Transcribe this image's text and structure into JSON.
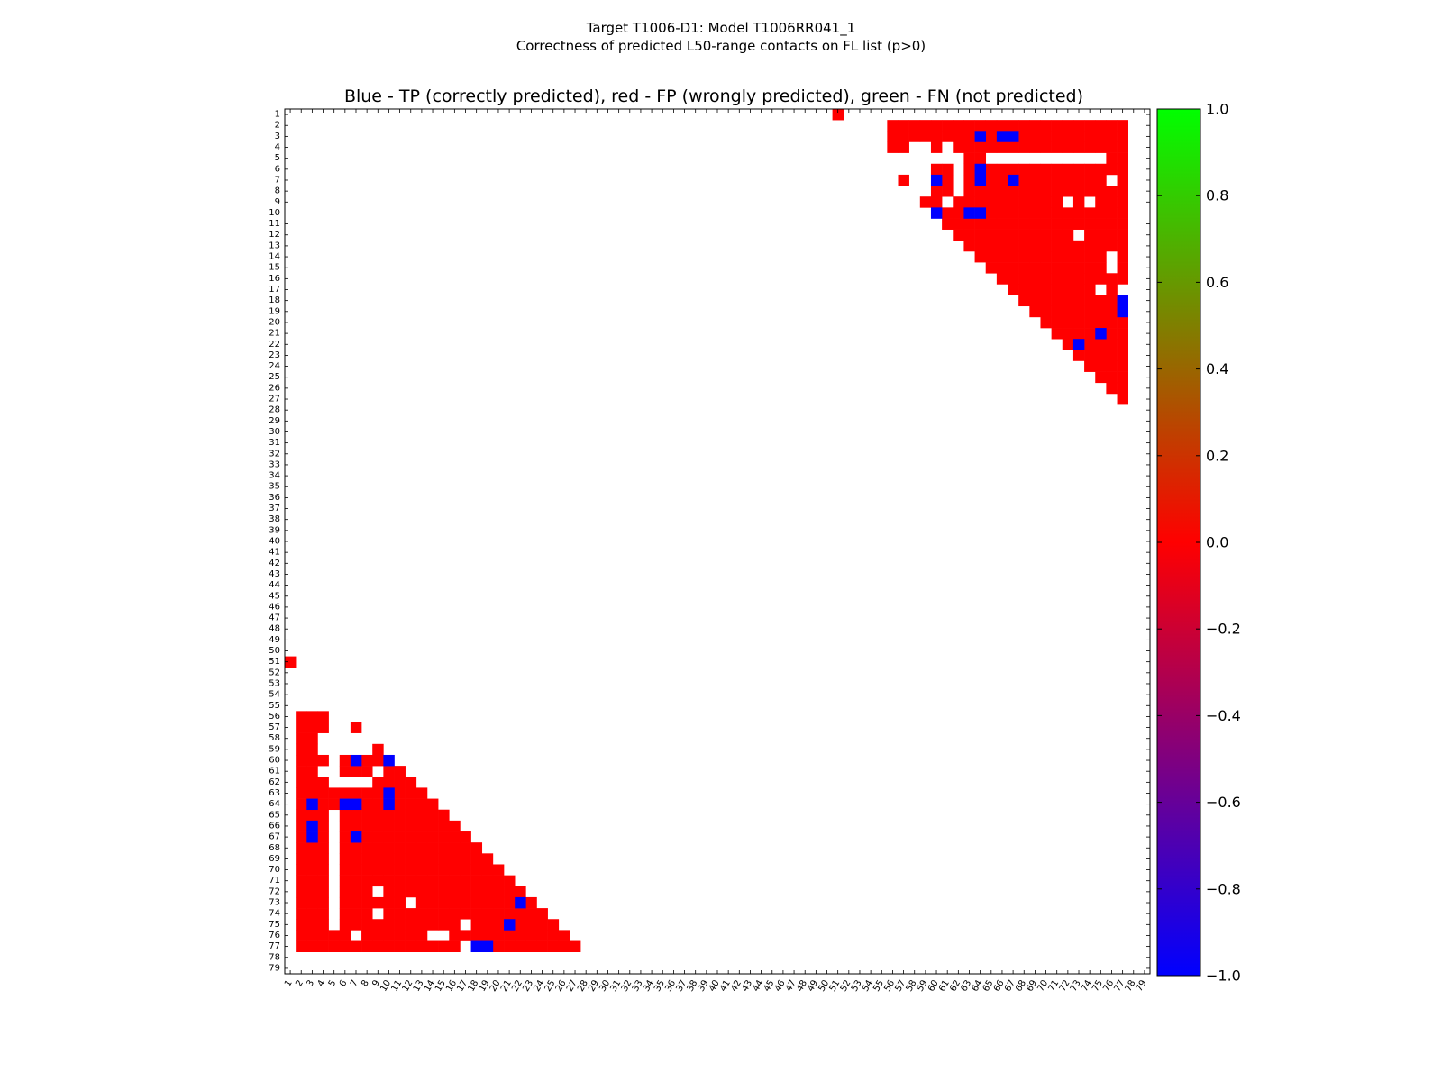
{
  "figure": {
    "title_line1": "Target T1006-D1: Model T1006RR041_1",
    "title_line2": "Correctness of predicted L50-range contacts on FL list (p>0)"
  },
  "chart_data": {
    "type": "heatmap",
    "title": "Blue - TP (correctly predicted), red - FP (wrongly predicted), green - FN (not predicted)",
    "xlabel": "",
    "ylabel": "",
    "n": 79,
    "x_ticks": [
      1,
      2,
      3,
      4,
      5,
      6,
      7,
      8,
      9,
      10,
      11,
      12,
      13,
      14,
      15,
      16,
      17,
      18,
      19,
      20,
      21,
      22,
      23,
      24,
      25,
      26,
      27,
      28,
      29,
      30,
      31,
      32,
      33,
      34,
      35,
      36,
      37,
      38,
      39,
      40,
      41,
      42,
      43,
      44,
      45,
      46,
      47,
      48,
      49,
      50,
      51,
      52,
      53,
      54,
      55,
      56,
      57,
      58,
      59,
      60,
      61,
      62,
      63,
      64,
      65,
      66,
      67,
      68,
      69,
      70,
      71,
      72,
      73,
      74,
      75,
      76,
      77,
      78,
      79
    ],
    "y_ticks": [
      1,
      2,
      3,
      4,
      5,
      6,
      7,
      8,
      9,
      10,
      11,
      12,
      13,
      14,
      15,
      16,
      17,
      18,
      19,
      20,
      21,
      22,
      23,
      24,
      25,
      26,
      27,
      28,
      29,
      30,
      31,
      32,
      33,
      34,
      35,
      36,
      37,
      38,
      39,
      40,
      41,
      42,
      43,
      44,
      45,
      46,
      47,
      48,
      49,
      50,
      51,
      52,
      53,
      54,
      55,
      56,
      57,
      58,
      59,
      60,
      61,
      62,
      63,
      64,
      65,
      66,
      67,
      68,
      69,
      70,
      71,
      72,
      73,
      74,
      75,
      76,
      77,
      78,
      79
    ],
    "colorbar": {
      "min": -1.0,
      "max": 1.0,
      "ticks": [
        "1.0",
        "0.8",
        "0.6",
        "0.4",
        "0.2",
        "0.0",
        "−0.2",
        "−0.4",
        "−0.6",
        "−0.8",
        "−1.0"
      ],
      "colors": [
        "#0000ff",
        "#ff0000",
        "#00ff00"
      ]
    },
    "colors": {
      "TP": "#0000ff",
      "FP": "#ff0000",
      "FN": "#00ff00"
    },
    "upper_fp_rows": [
      {
        "row": 1,
        "segments": [
          [
            51,
            51
          ]
        ]
      },
      {
        "row": 2,
        "segments": [
          [
            56,
            77
          ]
        ]
      },
      {
        "row": 3,
        "segments": [
          [
            56,
            77
          ]
        ]
      },
      {
        "row": 4,
        "segments": [
          [
            56,
            57
          ],
          [
            60,
            60
          ],
          [
            62,
            77
          ]
        ]
      },
      {
        "row": 5,
        "segments": [
          [
            63,
            64
          ],
          [
            76,
            77
          ]
        ]
      },
      {
        "row": 6,
        "segments": [
          [
            60,
            61
          ],
          [
            63,
            77
          ]
        ]
      },
      {
        "row": 7,
        "segments": [
          [
            57,
            57
          ],
          [
            60,
            61
          ],
          [
            63,
            75
          ],
          [
            77,
            77
          ]
        ]
      },
      {
        "row": 8,
        "segments": [
          [
            60,
            61
          ],
          [
            63,
            77
          ]
        ]
      },
      {
        "row": 9,
        "segments": [
          [
            59,
            60
          ],
          [
            62,
            71
          ],
          [
            73,
            73
          ],
          [
            75,
            77
          ]
        ]
      },
      {
        "row": 10,
        "segments": [
          [
            60,
            77
          ]
        ]
      },
      {
        "row": 11,
        "segments": [
          [
            61,
            77
          ]
        ]
      },
      {
        "row": 12,
        "segments": [
          [
            62,
            72
          ],
          [
            74,
            77
          ]
        ]
      },
      {
        "row": 13,
        "segments": [
          [
            63,
            77
          ]
        ]
      },
      {
        "row": 14,
        "segments": [
          [
            64,
            75
          ],
          [
            77,
            77
          ]
        ]
      },
      {
        "row": 15,
        "segments": [
          [
            65,
            75
          ],
          [
            77,
            77
          ]
        ]
      },
      {
        "row": 16,
        "segments": [
          [
            66,
            77
          ]
        ]
      },
      {
        "row": 17,
        "segments": [
          [
            67,
            74
          ],
          [
            76,
            76
          ]
        ]
      },
      {
        "row": 18,
        "segments": [
          [
            68,
            77
          ]
        ]
      },
      {
        "row": 19,
        "segments": [
          [
            69,
            76
          ]
        ]
      },
      {
        "row": 20,
        "segments": [
          [
            70,
            77
          ]
        ]
      },
      {
        "row": 21,
        "segments": [
          [
            71,
            77
          ]
        ]
      },
      {
        "row": 22,
        "segments": [
          [
            72,
            77
          ]
        ]
      },
      {
        "row": 23,
        "segments": [
          [
            73,
            77
          ]
        ]
      },
      {
        "row": 24,
        "segments": [
          [
            74,
            77
          ]
        ]
      },
      {
        "row": 25,
        "segments": [
          [
            75,
            77
          ]
        ]
      },
      {
        "row": 26,
        "segments": [
          [
            76,
            77
          ]
        ]
      },
      {
        "row": 27,
        "segments": [
          [
            77,
            77
          ]
        ]
      }
    ],
    "tp_contacts": [
      [
        3,
        64
      ],
      [
        3,
        66
      ],
      [
        3,
        67
      ],
      [
        6,
        64
      ],
      [
        7,
        60
      ],
      [
        7,
        64
      ],
      [
        7,
        67
      ],
      [
        10,
        60
      ],
      [
        10,
        63
      ],
      [
        10,
        64
      ],
      [
        18,
        77
      ],
      [
        19,
        77
      ],
      [
        21,
        75
      ],
      [
        22,
        73
      ]
    ]
  }
}
